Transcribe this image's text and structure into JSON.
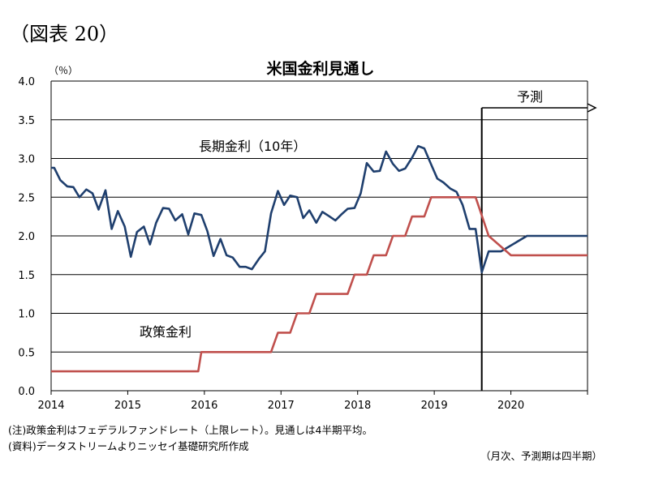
{
  "figure_label": "（図表 20）",
  "chart_data": {
    "type": "line",
    "title": "米国金利見通し",
    "ylabel": "（％）",
    "ylim": [
      0,
      4.0
    ],
    "yticks": [
      "0.0",
      "0.5",
      "1.0",
      "1.5",
      "2.0",
      "2.5",
      "3.0",
      "3.5",
      "4.0"
    ],
    "xlim": [
      2014.0,
      2021.0
    ],
    "xticks": [
      "2014",
      "2015",
      "2016",
      "2017",
      "2018",
      "2019",
      "2020"
    ],
    "grid": "horizontal",
    "forecast_start": 2019.62,
    "forecast_label": "予測",
    "series": [
      {
        "name": "長期金利（10年）",
        "color": "#1f3f6e",
        "points": [
          [
            2014.0,
            2.88
          ],
          [
            2014.04,
            2.88
          ],
          [
            2014.12,
            2.72
          ],
          [
            2014.21,
            2.64
          ],
          [
            2014.29,
            2.63
          ],
          [
            2014.37,
            2.5
          ],
          [
            2014.46,
            2.6
          ],
          [
            2014.54,
            2.55
          ],
          [
            2014.62,
            2.34
          ],
          [
            2014.71,
            2.59
          ],
          [
            2014.79,
            2.09
          ],
          [
            2014.87,
            2.32
          ],
          [
            2014.96,
            2.12
          ],
          [
            2015.04,
            1.73
          ],
          [
            2015.12,
            2.05
          ],
          [
            2015.21,
            2.12
          ],
          [
            2015.29,
            1.89
          ],
          [
            2015.37,
            2.17
          ],
          [
            2015.46,
            2.36
          ],
          [
            2015.54,
            2.35
          ],
          [
            2015.62,
            2.2
          ],
          [
            2015.71,
            2.28
          ],
          [
            2015.79,
            2.02
          ],
          [
            2015.87,
            2.29
          ],
          [
            2015.96,
            2.27
          ],
          [
            2016.04,
            2.06
          ],
          [
            2016.12,
            1.74
          ],
          [
            2016.21,
            1.96
          ],
          [
            2016.29,
            1.75
          ],
          [
            2016.37,
            1.72
          ],
          [
            2016.46,
            1.6
          ],
          [
            2016.54,
            1.6
          ],
          [
            2016.62,
            1.57
          ],
          [
            2016.71,
            1.7
          ],
          [
            2016.79,
            1.8
          ],
          [
            2016.87,
            2.29
          ],
          [
            2016.96,
            2.58
          ],
          [
            2017.04,
            2.4
          ],
          [
            2017.12,
            2.52
          ],
          [
            2017.21,
            2.5
          ],
          [
            2017.29,
            2.23
          ],
          [
            2017.37,
            2.33
          ],
          [
            2017.46,
            2.17
          ],
          [
            2017.54,
            2.31
          ],
          [
            2017.62,
            2.26
          ],
          [
            2017.71,
            2.2
          ],
          [
            2017.79,
            2.28
          ],
          [
            2017.87,
            2.35
          ],
          [
            2017.96,
            2.36
          ],
          [
            2018.04,
            2.55
          ],
          [
            2018.12,
            2.94
          ],
          [
            2018.21,
            2.83
          ],
          [
            2018.29,
            2.84
          ],
          [
            2018.37,
            3.09
          ],
          [
            2018.46,
            2.93
          ],
          [
            2018.54,
            2.84
          ],
          [
            2018.62,
            2.87
          ],
          [
            2018.71,
            3.01
          ],
          [
            2018.79,
            3.16
          ],
          [
            2018.87,
            3.13
          ],
          [
            2018.96,
            2.92
          ],
          [
            2019.04,
            2.74
          ],
          [
            2019.12,
            2.69
          ],
          [
            2019.21,
            2.61
          ],
          [
            2019.29,
            2.57
          ],
          [
            2019.37,
            2.4
          ],
          [
            2019.46,
            2.09
          ],
          [
            2019.54,
            2.09
          ],
          [
            2019.62,
            1.53
          ],
          [
            2019.71,
            1.8
          ],
          [
            2019.87,
            1.8
          ],
          [
            2020.21,
            2.0
          ],
          [
            2021.0,
            2.0
          ]
        ]
      },
      {
        "name": "政策金利",
        "color": "#c0504d",
        "points": [
          [
            2014.0,
            0.25
          ],
          [
            2015.92,
            0.25
          ],
          [
            2015.96,
            0.5
          ],
          [
            2016.87,
            0.5
          ],
          [
            2016.96,
            0.75
          ],
          [
            2017.12,
            0.75
          ],
          [
            2017.21,
            1.0
          ],
          [
            2017.37,
            1.0
          ],
          [
            2017.46,
            1.25
          ],
          [
            2017.87,
            1.25
          ],
          [
            2017.96,
            1.5
          ],
          [
            2018.12,
            1.5
          ],
          [
            2018.21,
            1.75
          ],
          [
            2018.37,
            1.75
          ],
          [
            2018.46,
            2.0
          ],
          [
            2018.62,
            2.0
          ],
          [
            2018.71,
            2.25
          ],
          [
            2018.87,
            2.25
          ],
          [
            2018.96,
            2.5
          ],
          [
            2019.54,
            2.5
          ],
          [
            2019.71,
            2.0
          ],
          [
            2020.0,
            1.75
          ],
          [
            2021.0,
            1.75
          ]
        ]
      }
    ]
  },
  "notes": {
    "line1": "(注)政策金利はフェデラルファンドレート（上限レート）。見通しは4半期平均。",
    "line2": "(資料)データストリームよりニッセイ基礎研究所作成",
    "frequency": "（月次、予測期は四半期）"
  }
}
